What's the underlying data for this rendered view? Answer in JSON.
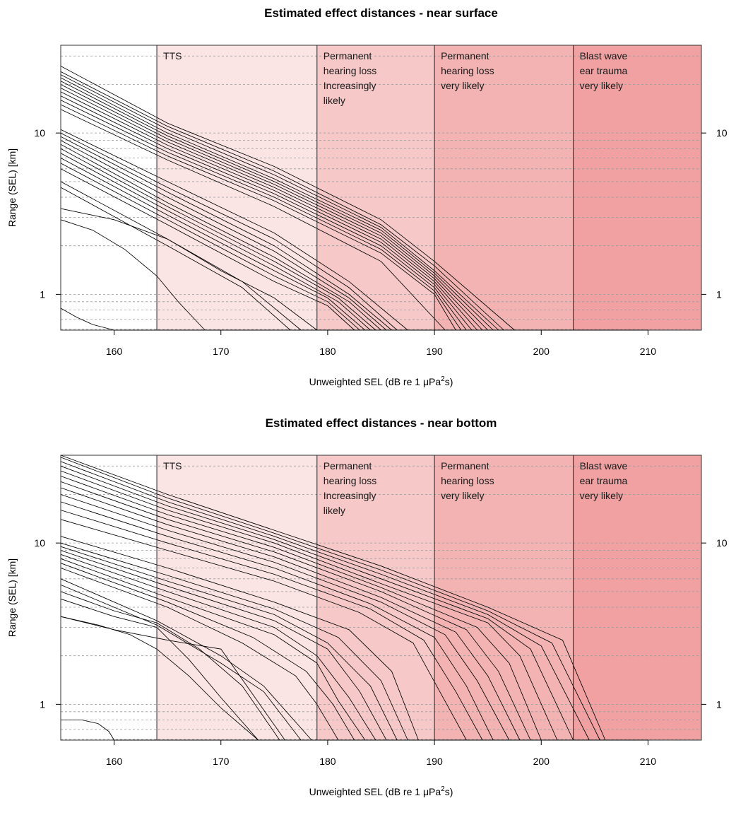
{
  "chart_data": [
    {
      "type": "line",
      "title": "Estimated effect distances - near surface",
      "xlabel_prefix": "Unweighted SEL (dB re 1 ",
      "xlabel_mu": "μ",
      "xlabel_unit": "Pa",
      "xlabel_sup": "2",
      "xlabel_suffix": "s)",
      "ylabel": "Range (SEL) [km]",
      "xlim": [
        155,
        215
      ],
      "ylim": [
        0.6,
        35
      ],
      "y_scale": "log",
      "x_ticks": [
        160,
        170,
        180,
        190,
        200,
        210
      ],
      "x_tick_labels": [
        "160",
        "170",
        "180",
        "190",
        "200",
        "210"
      ],
      "y_ticks": [
        1,
        10
      ],
      "y_tick_labels": [
        "1",
        "10"
      ],
      "y_minor_gridlines": [
        0.7,
        0.8,
        0.9,
        1,
        2,
        3,
        4,
        5,
        6,
        7,
        8,
        9,
        10,
        20,
        30
      ],
      "grid": true,
      "zones": [
        {
          "from": 164,
          "to": 179,
          "color": "#fbe4e4",
          "label": [
            "TTS"
          ]
        },
        {
          "from": 179,
          "to": 190,
          "color": "#f7c8c8",
          "label": [
            "Permanent",
            "hearing loss",
            "Increasingly",
            "likely"
          ]
        },
        {
          "from": 190,
          "to": 203,
          "color": "#f3b3b3",
          "label": [
            "Permanent",
            "hearing loss",
            "very likely"
          ]
        },
        {
          "from": 203,
          "to": 215,
          "color": "#f1a1a1",
          "label": [
            "Blast wave",
            "ear trauma",
            "very likely"
          ]
        }
      ],
      "series": [
        {
          "x": [
            155,
            165,
            175,
            185,
            190,
            197.5
          ],
          "y": [
            26,
            11.5,
            6.2,
            2.9,
            1.6,
            0.6
          ]
        },
        {
          "x": [
            155,
            165,
            175,
            185,
            190,
            196.5
          ],
          "y": [
            24,
            11,
            5.8,
            2.7,
            1.5,
            0.6
          ]
        },
        {
          "x": [
            155,
            165,
            175,
            185,
            190,
            196
          ],
          "y": [
            23,
            10.5,
            5.5,
            2.6,
            1.4,
            0.6
          ]
        },
        {
          "x": [
            155,
            165,
            175,
            185,
            190,
            195.5
          ],
          "y": [
            22,
            10,
            5.2,
            2.5,
            1.35,
            0.6
          ]
        },
        {
          "x": [
            155,
            165,
            175,
            185,
            190,
            195
          ],
          "y": [
            21,
            9.6,
            5,
            2.4,
            1.3,
            0.6
          ]
        },
        {
          "x": [
            155,
            165,
            175,
            185,
            190,
            194.5
          ],
          "y": [
            20,
            9.2,
            4.8,
            2.3,
            1.25,
            0.6
          ]
        },
        {
          "x": [
            155,
            165,
            175,
            185,
            190,
            194
          ],
          "y": [
            19,
            8.8,
            4.6,
            2.2,
            1.2,
            0.6
          ]
        },
        {
          "x": [
            155,
            165,
            175,
            185,
            190,
            193.5
          ],
          "y": [
            18,
            8.4,
            4.4,
            2.1,
            1.15,
            0.6
          ]
        },
        {
          "x": [
            155,
            165,
            175,
            185,
            190,
            193
          ],
          "y": [
            17,
            8,
            4.2,
            2,
            1.1,
            0.6
          ]
        },
        {
          "x": [
            155,
            165,
            175,
            185,
            190,
            192.5
          ],
          "y": [
            16,
            7.6,
            4,
            1.9,
            1.05,
            0.6
          ]
        },
        {
          "x": [
            155,
            165,
            175,
            185,
            190,
            192
          ],
          "y": [
            15,
            7.2,
            3.8,
            1.8,
            1,
            0.6
          ]
        },
        {
          "x": [
            155,
            165,
            175,
            185,
            191
          ],
          "y": [
            14,
            6.8,
            3.5,
            1.6,
            0.6
          ]
        },
        {
          "x": [
            155,
            165,
            175,
            182,
            187.5
          ],
          "y": [
            10.5,
            5,
            2.4,
            1.2,
            0.6
          ]
        },
        {
          "x": [
            155,
            165,
            175,
            182,
            186.5
          ],
          "y": [
            10,
            4.6,
            2.2,
            1.1,
            0.6
          ]
        },
        {
          "x": [
            155,
            165,
            175,
            182,
            186
          ],
          "y": [
            9.5,
            4.3,
            2,
            1,
            0.6
          ]
        },
        {
          "x": [
            155,
            165,
            175,
            182,
            185.5
          ],
          "y": [
            9,
            4,
            1.85,
            0.95,
            0.6
          ]
        },
        {
          "x": [
            155,
            165,
            175,
            182,
            185
          ],
          "y": [
            8.5,
            3.7,
            1.7,
            0.9,
            0.6
          ]
        },
        {
          "x": [
            155,
            165,
            175,
            181,
            184.5
          ],
          "y": [
            8,
            3.5,
            1.6,
            0.95,
            0.6
          ]
        },
        {
          "x": [
            155,
            165,
            175,
            181,
            184
          ],
          "y": [
            7.5,
            3.3,
            1.5,
            0.9,
            0.6
          ]
        },
        {
          "x": [
            155,
            165,
            175,
            180,
            183.5
          ],
          "y": [
            7,
            3.1,
            1.4,
            0.95,
            0.6
          ]
        },
        {
          "x": [
            155,
            165,
            175,
            180,
            183
          ],
          "y": [
            6.5,
            2.9,
            1.3,
            0.9,
            0.6
          ]
        },
        {
          "x": [
            155,
            165,
            175,
            180,
            182.5
          ],
          "y": [
            6,
            2.7,
            1.2,
            0.85,
            0.6
          ]
        },
        {
          "x": [
            155,
            165,
            172,
            177.5
          ],
          "y": [
            5,
            2.2,
            1.2,
            0.6
          ]
        },
        {
          "x": [
            155,
            165,
            172,
            176.5
          ],
          "y": [
            4.6,
            2,
            1.1,
            0.6
          ]
        },
        {
          "x": [
            155,
            160,
            165,
            170,
            175,
            179
          ],
          "y": [
            3.4,
            2.9,
            2.2,
            1.4,
            0.95,
            0.6
          ]
        },
        {
          "x": [
            155,
            158,
            161,
            164,
            166,
            168.5
          ],
          "y": [
            2.9,
            2.5,
            1.9,
            1.3,
            0.9,
            0.6
          ]
        },
        {
          "x": [
            155,
            156.5,
            158,
            160
          ],
          "y": [
            0.82,
            0.72,
            0.65,
            0.6
          ]
        }
      ]
    },
    {
      "type": "line",
      "title": "Estimated effect distances - near bottom",
      "xlabel_prefix": "Unweighted SEL (dB re 1 ",
      "xlabel_mu": "μ",
      "xlabel_unit": "Pa",
      "xlabel_sup": "2",
      "xlabel_suffix": "s)",
      "ylabel": "Range (SEL) [km]",
      "xlim": [
        155,
        215
      ],
      "ylim": [
        0.6,
        35
      ],
      "y_scale": "log",
      "x_ticks": [
        160,
        170,
        180,
        190,
        200,
        210
      ],
      "x_tick_labels": [
        "160",
        "170",
        "180",
        "190",
        "200",
        "210"
      ],
      "y_ticks": [
        1,
        10
      ],
      "y_tick_labels": [
        "1",
        "10"
      ],
      "y_minor_gridlines": [
        0.7,
        0.8,
        0.9,
        1,
        2,
        3,
        4,
        5,
        6,
        7,
        8,
        9,
        10,
        20,
        30
      ],
      "grid": true,
      "zones": [
        {
          "from": 164,
          "to": 179,
          "color": "#fbe4e4",
          "label": [
            "TTS"
          ]
        },
        {
          "from": 179,
          "to": 190,
          "color": "#f7c8c8",
          "label": [
            "Permanent",
            "hearing loss",
            "Increasingly",
            "likely"
          ]
        },
        {
          "from": 190,
          "to": 203,
          "color": "#f3b3b3",
          "label": [
            "Permanent",
            "hearing loss",
            "very likely"
          ]
        },
        {
          "from": 203,
          "to": 215,
          "color": "#f1a1a1",
          "label": [
            "Blast wave",
            "ear trauma",
            "very likely"
          ]
        }
      ],
      "series": [
        {
          "x": [
            155,
            165,
            175,
            185,
            195,
            202,
            206
          ],
          "y": [
            35,
            20,
            12,
            7.2,
            4,
            2.5,
            0.6
          ]
        },
        {
          "x": [
            155,
            165,
            175,
            185,
            195,
            201,
            205.5
          ],
          "y": [
            34,
            19,
            11.5,
            6.8,
            3.8,
            2.4,
            0.6
          ]
        },
        {
          "x": [
            155,
            165,
            175,
            185,
            195,
            200,
            204.5
          ],
          "y": [
            32,
            18,
            11,
            6.4,
            3.6,
            2.3,
            0.6
          ]
        },
        {
          "x": [
            155,
            165,
            175,
            185,
            195,
            199,
            203
          ],
          "y": [
            30,
            17,
            10.5,
            6,
            3.4,
            2.2,
            0.6
          ]
        },
        {
          "x": [
            155,
            165,
            175,
            185,
            195,
            198,
            201.5
          ],
          "y": [
            28,
            16,
            10,
            5.6,
            3.2,
            2,
            0.6
          ]
        },
        {
          "x": [
            155,
            165,
            175,
            185,
            194,
            197,
            200
          ],
          "y": [
            26,
            15,
            9.4,
            5.3,
            3,
            1.8,
            0.6
          ]
        },
        {
          "x": [
            155,
            165,
            175,
            185,
            193,
            196,
            199
          ],
          "y": [
            24,
            14,
            8.8,
            5,
            2.9,
            1.6,
            0.6
          ]
        },
        {
          "x": [
            155,
            165,
            175,
            185,
            192,
            195,
            198
          ],
          "y": [
            22,
            13,
            8.2,
            4.6,
            2.8,
            1.5,
            0.6
          ]
        },
        {
          "x": [
            155,
            165,
            175,
            185,
            191,
            194,
            197
          ],
          "y": [
            20,
            12,
            7.6,
            4.3,
            2.7,
            1.4,
            0.6
          ]
        },
        {
          "x": [
            155,
            165,
            175,
            184,
            190,
            193,
            195.5
          ],
          "y": [
            18,
            11,
            7,
            4.2,
            2.6,
            1.3,
            0.6
          ]
        },
        {
          "x": [
            155,
            165,
            175,
            184,
            189,
            192,
            194.5
          ],
          "y": [
            16,
            10,
            6.4,
            3.9,
            2.5,
            1.2,
            0.6
          ]
        },
        {
          "x": [
            155,
            165,
            175,
            183,
            188,
            190.5,
            193
          ],
          "y": [
            14,
            9,
            5.8,
            3.7,
            2.4,
            1.2,
            0.6
          ]
        },
        {
          "x": [
            155,
            165,
            175,
            182,
            186,
            188.5
          ],
          "y": [
            11,
            7,
            4.3,
            2.9,
            1.6,
            0.6
          ]
        },
        {
          "x": [
            155,
            165,
            175,
            181,
            185,
            187.5
          ],
          "y": [
            10,
            6.3,
            3.9,
            2.6,
            1.4,
            0.6
          ]
        },
        {
          "x": [
            155,
            165,
            175,
            180,
            184,
            186.5
          ],
          "y": [
            9.5,
            5.8,
            3.6,
            2.4,
            1.3,
            0.6
          ]
        },
        {
          "x": [
            155,
            165,
            175,
            180,
            183,
            185.5
          ],
          "y": [
            9,
            5.4,
            3.3,
            2.2,
            1.2,
            0.6
          ]
        },
        {
          "x": [
            155,
            165,
            175,
            179,
            182,
            184.5
          ],
          "y": [
            8.5,
            5,
            3,
            2,
            1.1,
            0.6
          ]
        },
        {
          "x": [
            155,
            165,
            175,
            179,
            181,
            183.5
          ],
          "y": [
            8,
            4.6,
            2.7,
            1.8,
            1.05,
            0.6
          ]
        },
        {
          "x": [
            155,
            165,
            173,
            178,
            180.5,
            182.5
          ],
          "y": [
            7.5,
            4.3,
            2.6,
            1.6,
            1,
            0.6
          ]
        },
        {
          "x": [
            155,
            165,
            172,
            177,
            179,
            181
          ],
          "y": [
            7,
            4,
            2.4,
            1.5,
            1,
            0.6
          ]
        },
        {
          "x": [
            155,
            164,
            170,
            174,
            178.5
          ],
          "y": [
            6,
            3.3,
            2,
            1.3,
            0.6
          ]
        },
        {
          "x": [
            155,
            164,
            170,
            174,
            177.5
          ],
          "y": [
            5.5,
            3.1,
            1.8,
            1.2,
            0.6
          ]
        },
        {
          "x": [
            155,
            160,
            164,
            168,
            172,
            175.5
          ],
          "y": [
            5,
            3.8,
            3.2,
            2.2,
            1.3,
            0.6
          ]
        },
        {
          "x": [
            155,
            160,
            164,
            167,
            170,
            173.5
          ],
          "y": [
            4.5,
            3.5,
            3,
            1.9,
            1.1,
            0.6
          ]
        },
        {
          "x": [
            155,
            160,
            165,
            170,
            176
          ],
          "y": [
            3.5,
            2.9,
            2.5,
            2.2,
            0.6
          ]
        },
        {
          "x": [
            155,
            158.5,
            161.5,
            164,
            167,
            170,
            173.5
          ],
          "y": [
            3.5,
            3.1,
            2.7,
            2.2,
            1.5,
            0.95,
            0.6
          ]
        },
        {
          "x": [
            155,
            157,
            158.5,
            159.5,
            160
          ],
          "y": [
            0.8,
            0.8,
            0.76,
            0.68,
            0.6
          ]
        }
      ]
    }
  ]
}
